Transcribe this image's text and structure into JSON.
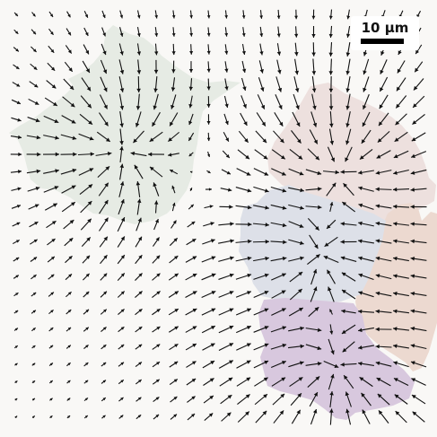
{
  "image": {
    "kind": "microscopy traction-force vector field",
    "background": "#f9f8f6",
    "arrow_color": "#111111"
  },
  "cells": [
    {
      "id": "cell-left",
      "color": "#e6ebe4"
    },
    {
      "id": "cell-right-top",
      "color": "#ede0de"
    },
    {
      "id": "cell-right-edge",
      "color": "#ecd9d0"
    },
    {
      "id": "cell-center",
      "color": "#dde0e8"
    },
    {
      "id": "cell-bottom",
      "color": "#d8c8de"
    }
  ],
  "scale_bar": {
    "label": "10 µm"
  }
}
